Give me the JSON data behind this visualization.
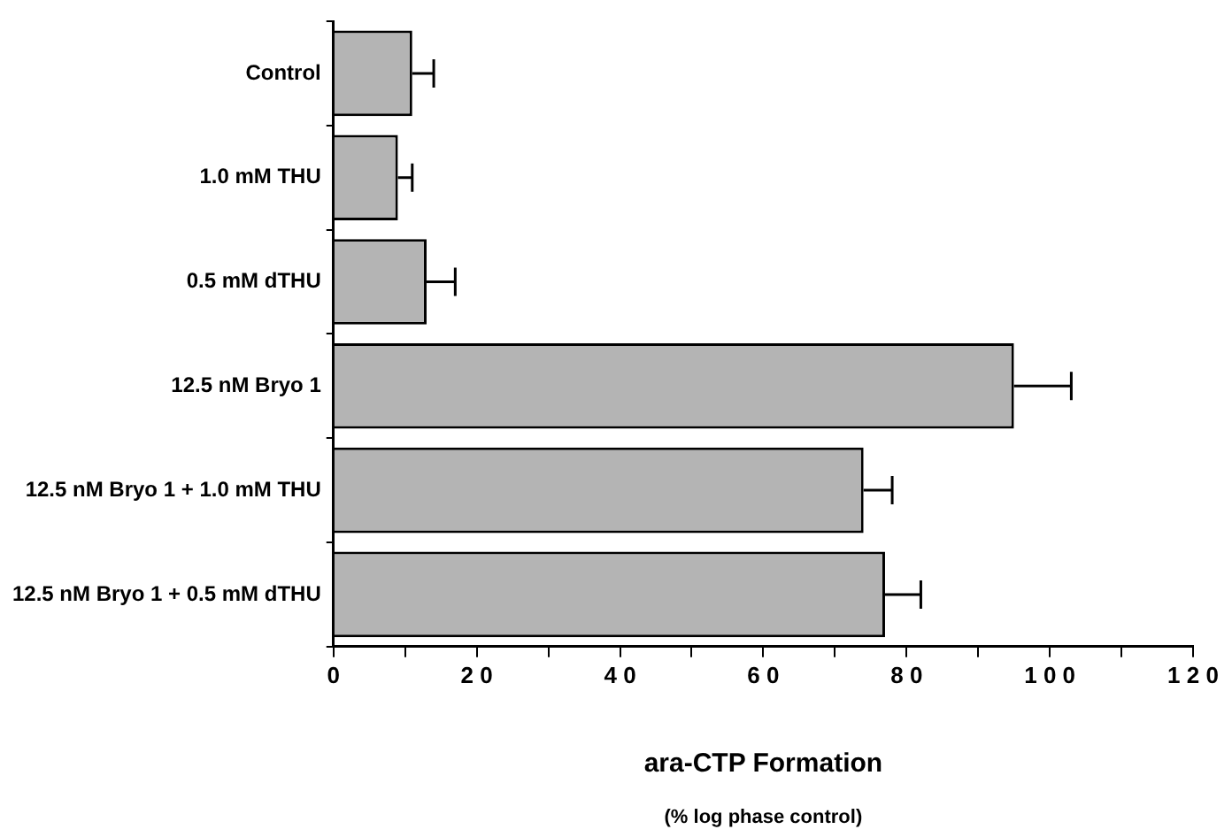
{
  "chart_data": {
    "type": "bar",
    "orientation": "horizontal",
    "xlabel": "ara-CTP Formation\n(% log phase control)",
    "categories": [
      "Control",
      "1.0 mM THU",
      "0.5 mM dTHU",
      "12.5 nM Bryo 1",
      "12.5 nM Bryo 1 + 1.0 mM THU",
      "12.5 nM Bryo 1 + 0.5 mM dTHU"
    ],
    "values": [
      11,
      9,
      13,
      95,
      74,
      77
    ],
    "errors": [
      [
        11,
        14
      ],
      [
        9,
        11
      ],
      [
        13,
        17
      ],
      [
        95,
        103
      ],
      [
        74,
        78
      ],
      [
        77,
        82
      ]
    ],
    "color": "#b4b4b4",
    "xlim": [
      0,
      120
    ],
    "xticks": [
      0,
      {
        "value": 10,
        "label": null
      },
      20,
      {
        "value": 30,
        "label": null
      },
      40,
      {
        "value": 50,
        "label": null
      },
      60,
      {
        "value": 70,
        "label": null
      },
      80,
      {
        "value": 90,
        "label": null
      },
      100,
      {
        "value": 110,
        "label": null
      },
      120
    ],
    "grid": false,
    "legend": false
  }
}
